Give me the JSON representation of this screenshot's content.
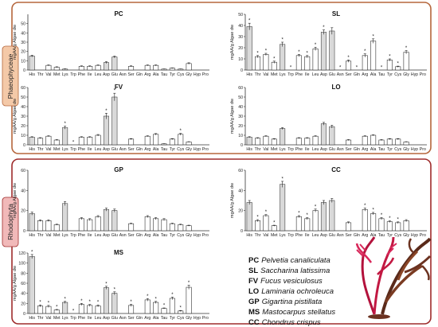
{
  "groups": [
    {
      "label": "Phaeophyceae",
      "border_color": "#b5663c",
      "tab_color": "#f4c9a8"
    },
    {
      "label": "Rhodophyta",
      "border_color": "#9e2b2b",
      "tab_color": "#f1b9b9"
    }
  ],
  "legend": [
    {
      "abbr": "PC",
      "name": "Pelvetia canaliculata"
    },
    {
      "abbr": "SL",
      "name": "Saccharina latissima"
    },
    {
      "abbr": "FV",
      "name": "Fucus vesiculosus"
    },
    {
      "abbr": "LO",
      "name": "Laminaria ochroleuca"
    },
    {
      "abbr": "GP",
      "name": "Gigartina pistillata"
    },
    {
      "abbr": "MS",
      "name": "Mastocarpus stellatus"
    },
    {
      "abbr": "CC",
      "name": "Chondrus crispus"
    }
  ],
  "illustration": "red-seaweed-illustration",
  "chart_data": [
    {
      "type": "bar",
      "title": "PC",
      "ylabel": "mgAA/g Algae dw",
      "ylim": [
        0,
        60
      ],
      "yticks": [
        0,
        10,
        20,
        30,
        40,
        50
      ],
      "categories": [
        "His",
        "Thr",
        "Val",
        "Met",
        "Lys",
        "Trp",
        "Phe",
        "Ile",
        "Leu",
        "Asp",
        "Glu",
        "Asn",
        "Ser",
        "Gln",
        "Arg",
        "Ala",
        "Tau",
        "Tyr",
        "Cys",
        "Gly",
        "Hyp",
        "Pro"
      ],
      "values": [
        15,
        0,
        5,
        3,
        1,
        0,
        4,
        4,
        5,
        8,
        14,
        0,
        4,
        0,
        5,
        5,
        1,
        2,
        1,
        7,
        0,
        0
      ],
      "errors": [
        1,
        0,
        0.5,
        0.5,
        0.3,
        0,
        0.5,
        0.5,
        0.5,
        1,
        1,
        0,
        0.5,
        0,
        0.5,
        0.5,
        0.2,
        0.3,
        0.2,
        0.8,
        0,
        0
      ],
      "sig": []
    },
    {
      "type": "bar",
      "title": "SL",
      "ylabel": "mgAA/g Algae dw",
      "ylim": [
        0,
        50
      ],
      "yticks": [
        0,
        10,
        20,
        30,
        40,
        50
      ],
      "categories": [
        "His",
        "Thr",
        "Val",
        "Met",
        "Lys",
        "Trp",
        "Phe",
        "Ile",
        "Leu",
        "Asp",
        "Glu",
        "Asn",
        "Ser",
        "Gln",
        "Arg",
        "Ala",
        "Tau",
        "Tyr",
        "Cys",
        "Gly",
        "Hyp",
        "Pro"
      ],
      "values": [
        39,
        12,
        14,
        7,
        23,
        0,
        13,
        12,
        19,
        34,
        35,
        0,
        8,
        0,
        13,
        26,
        0,
        9,
        3,
        16,
        0,
        0
      ],
      "errors": [
        3,
        1,
        1,
        1,
        2,
        0,
        1,
        1,
        1.5,
        2,
        3,
        0,
        1,
        0,
        1.5,
        2,
        0,
        1,
        0.5,
        1.5,
        0,
        0
      ],
      "sig": [
        0,
        1,
        2,
        3,
        4,
        5,
        6,
        7,
        8,
        9,
        11,
        12,
        13,
        14,
        15,
        16,
        17,
        18,
        19
      ]
    },
    {
      "type": "bar",
      "title": "FV",
      "ylabel": "mgAA/g Algae dw",
      "ylim": [
        0,
        60
      ],
      "yticks": [
        0,
        10,
        20,
        30,
        40,
        50,
        60
      ],
      "categories": [
        "His",
        "Thr",
        "Val",
        "Met",
        "Lys",
        "Trp",
        "Phe",
        "Ile",
        "Leu",
        "Asp",
        "Glu",
        "Asn",
        "Ser",
        "Gln",
        "Arg",
        "Ala",
        "Tau",
        "Tyr",
        "Cys",
        "Gly",
        "Hyp",
        "Pro"
      ],
      "values": [
        8,
        7,
        9,
        5,
        18,
        0,
        8,
        8,
        10,
        30,
        50,
        0,
        6,
        0,
        9,
        11,
        1,
        6,
        11,
        3,
        0,
        0
      ],
      "errors": [
        0.5,
        0.5,
        0.5,
        0.5,
        1.5,
        0,
        0.5,
        0.5,
        0.8,
        3,
        4,
        0,
        0.5,
        0,
        0.5,
        0.8,
        0.2,
        0.5,
        1,
        0.3,
        0,
        0
      ],
      "sig": [
        4,
        5,
        9,
        10,
        18
      ]
    },
    {
      "type": "bar",
      "title": "LO",
      "ylabel": "mgAA/g Algae dw",
      "ylim": [
        0,
        60
      ],
      "yticks": [
        0,
        10,
        20,
        30,
        40,
        50,
        60
      ],
      "categories": [
        "His",
        "Thr",
        "Val",
        "Met",
        "Lys",
        "Trp",
        "Phe",
        "Ile",
        "Leu",
        "Asp",
        "Glu",
        "Asn",
        "Ser",
        "Gln",
        "Arg",
        "Ala",
        "Tau",
        "Tyr",
        "Cys",
        "Gly",
        "Hyp",
        "Pro"
      ],
      "values": [
        8,
        7,
        9,
        6,
        17,
        0,
        7,
        7,
        9,
        22,
        19,
        0,
        5,
        0,
        9,
        10,
        5,
        6,
        6,
        3,
        0,
        0
      ],
      "errors": [
        0.5,
        0.5,
        0.5,
        0.5,
        1,
        0,
        0.5,
        0.5,
        0.5,
        1.5,
        1.5,
        0,
        0.5,
        0,
        0.5,
        0.5,
        0.5,
        0.5,
        0.5,
        0.3,
        0,
        0
      ],
      "sig": []
    },
    {
      "type": "bar",
      "title": "GP",
      "ylabel": "mgAA/g Algae dw",
      "ylim": [
        0,
        60
      ],
      "yticks": [
        0,
        20,
        40,
        60
      ],
      "categories": [
        "His",
        "Thr",
        "Val",
        "Met",
        "Lys",
        "Trp",
        "Phe",
        "Ile",
        "Leu",
        "Asp",
        "Glu",
        "Asn",
        "Ser",
        "Gln",
        "Arg",
        "Ala",
        "Tau",
        "Tyr",
        "Cys",
        "Gly",
        "Hyp",
        "Pro"
      ],
      "values": [
        17,
        10,
        10,
        6,
        27,
        0,
        12,
        11,
        14,
        21,
        20,
        0,
        7,
        0,
        14,
        12,
        11,
        7,
        6,
        5,
        0,
        0
      ],
      "errors": [
        1.5,
        0.8,
        0.8,
        0.5,
        2,
        0,
        1,
        1,
        1,
        1.5,
        1.5,
        0,
        0.5,
        0,
        1,
        1,
        1,
        0.5,
        0.5,
        0.5,
        0,
        0
      ],
      "sig": []
    },
    {
      "type": "bar",
      "title": "CC",
      "ylabel": "mgAA/g Algae dw",
      "ylim": [
        0,
        60
      ],
      "yticks": [
        0,
        20,
        40,
        60
      ],
      "categories": [
        "His",
        "Thr",
        "Val",
        "Met",
        "Lys",
        "Trp",
        "Phe",
        "Ile",
        "Leu",
        "Asp",
        "Glu",
        "Asn",
        "Ser",
        "Gln",
        "Arg",
        "Ala",
        "Tau",
        "Tyr",
        "Cys",
        "Gly",
        "Hyp",
        "Pro"
      ],
      "values": [
        28,
        10,
        15,
        5,
        46,
        0,
        14,
        12,
        20,
        28,
        30,
        0,
        8,
        0,
        21,
        17,
        12,
        9,
        8,
        10,
        0,
        0
      ],
      "errors": [
        2,
        1,
        1,
        0.5,
        3,
        0,
        1,
        1,
        1.5,
        2,
        2,
        0,
        0.8,
        0,
        1.5,
        1.2,
        1,
        0.8,
        0.8,
        1,
        0,
        0
      ],
      "sig": [
        1,
        2,
        3,
        4,
        6,
        7,
        8,
        14,
        15,
        16,
        17,
        18
      ]
    },
    {
      "type": "bar",
      "title": "MS",
      "ylabel": "mgAA/g Algae dw",
      "ylim": [
        0,
        120
      ],
      "yticks": [
        0,
        20,
        40,
        60,
        80,
        100,
        120
      ],
      "categories": [
        "His",
        "Thr",
        "Val",
        "Met",
        "Lys",
        "Trp",
        "Phe",
        "Ile",
        "Leu",
        "Asp",
        "Glu",
        "Asn",
        "Ser",
        "Gln",
        "Arg",
        "Ala",
        "Tau",
        "Tyr",
        "Cys",
        "Gly",
        "Hyp",
        "Pro"
      ],
      "values": [
        113,
        15,
        14,
        7,
        22,
        0,
        18,
        16,
        15,
        51,
        40,
        0,
        16,
        0,
        27,
        22,
        10,
        30,
        5,
        52,
        0,
        0
      ],
      "errors": [
        4,
        2,
        2,
        1,
        2,
        0,
        2,
        2,
        2,
        3,
        3,
        0,
        2,
        0,
        2.5,
        2,
        1,
        2.5,
        1,
        4,
        0,
        0
      ],
      "sig": [
        0,
        1,
        2,
        3,
        4,
        5,
        6,
        7,
        8,
        9,
        10,
        12,
        14,
        15,
        16,
        17,
        18,
        19
      ]
    }
  ]
}
